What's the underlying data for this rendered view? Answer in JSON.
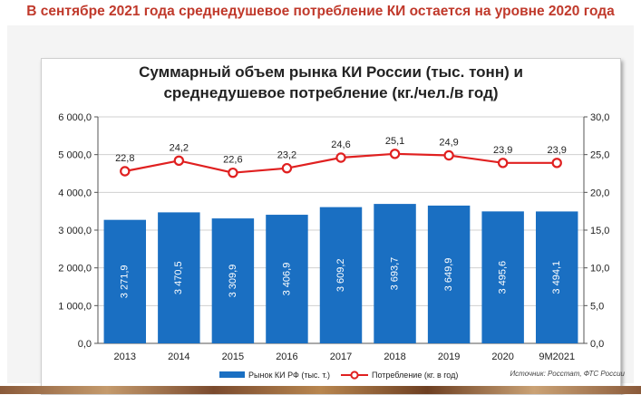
{
  "headline": "В сентябре 2021 года среднедушевое потребление КИ остается на уровне 2020 года",
  "source_note": "Источник: Росстат, ФТС России",
  "chart_data": {
    "type": "bar",
    "title_line1": "Суммарный объем рынка КИ России (тыс. тонн) и",
    "title_line2": "среднедушевое потребление (кг./чел./в год)",
    "categories": [
      "2013",
      "2014",
      "2015",
      "2016",
      "2017",
      "2018",
      "2019",
      "2020",
      "9M2021"
    ],
    "series": [
      {
        "name": "Рынок КИ РФ (тыс. т.)",
        "type": "bar",
        "axis": "left",
        "color": "#1a6fc2",
        "values": [
          3271.9,
          3470.5,
          3309.9,
          3406.9,
          3609.2,
          3693.7,
          3649.9,
          3495.6,
          3494.1
        ],
        "labels": [
          "3 271,9",
          "3 470,5",
          "3 309,9",
          "3 406,9",
          "3 609,2",
          "3 693,7",
          "3 649,9",
          "3 495,6",
          "3 494,1"
        ]
      },
      {
        "name": "Потребление (кг. в год)",
        "type": "line",
        "axis": "right",
        "color": "#e02020",
        "values": [
          22.8,
          24.2,
          22.6,
          23.2,
          24.6,
          25.1,
          24.9,
          23.9,
          23.9
        ],
        "labels": [
          "22,8",
          "24,2",
          "22,6",
          "23,2",
          "24,6",
          "25,1",
          "24,9",
          "23,9",
          "23,9"
        ]
      }
    ],
    "ylim_left": [
      0,
      6000
    ],
    "ylim_right": [
      0,
      30
    ],
    "left_ticks": [
      "0,0",
      "1 000,0",
      "2 000,0",
      "3 000,0",
      "4 000,0",
      "5 000,0",
      "6 000,0"
    ],
    "right_ticks": [
      "0,0",
      "5,0",
      "10,0",
      "15,0",
      "20,0",
      "25,0",
      "30,0"
    ],
    "grid": true,
    "legend_position": "bottom"
  }
}
